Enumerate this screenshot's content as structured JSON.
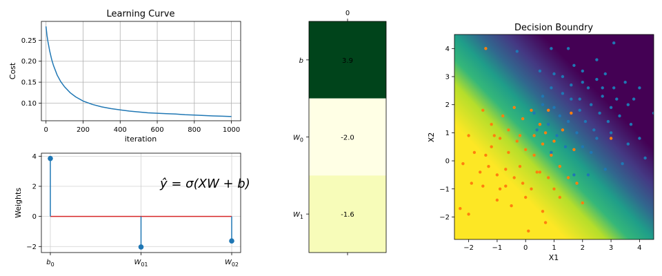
{
  "chart_data": [
    {
      "type": "line",
      "title": "Learning Curve",
      "xlabel": "iteration",
      "ylabel": "Cost",
      "xlim": [
        -25,
        1050
      ],
      "ylim": [
        0.058,
        0.295
      ],
      "xticks": [
        0,
        200,
        400,
        600,
        800,
        1000
      ],
      "yticks": [
        0.1,
        0.15,
        0.2,
        0.25
      ],
      "xtick_labels": [
        "0",
        "200",
        "400",
        "600",
        "800",
        "1000"
      ],
      "ytick_labels": [
        "0.10",
        "0.15",
        "0.20",
        "0.25"
      ],
      "grid": true,
      "color": "#1f77b4",
      "series": [
        {
          "x": [
            0,
            5,
            10,
            20,
            30,
            40,
            60,
            80,
            100,
            130,
            160,
            200,
            250,
            300,
            350,
            400,
            450,
            500,
            550,
            600,
            650,
            700,
            750,
            800,
            850,
            900,
            950,
            1000
          ],
          "values": [
            0.283,
            0.262,
            0.248,
            0.224,
            0.205,
            0.19,
            0.167,
            0.151,
            0.139,
            0.125,
            0.115,
            0.105,
            0.097,
            0.091,
            0.087,
            0.084,
            0.081,
            0.079,
            0.077,
            0.076,
            0.075,
            0.074,
            0.0725,
            0.0715,
            0.0705,
            0.0695,
            0.0688,
            0.068
          ]
        }
      ]
    },
    {
      "type": "stem",
      "xlabel": "",
      "ylabel": "Weights",
      "categories": [
        "b_0",
        "W_01",
        "W_02"
      ],
      "values": [
        3.85,
        -2.03,
        -1.63
      ],
      "ylim": [
        -2.4,
        4.2
      ],
      "yticks": [
        -2,
        0,
        2,
        4
      ],
      "ytick_labels": [
        "−2",
        "0",
        "2",
        "4"
      ],
      "grid": true,
      "stem_color": "#1f77b4",
      "baseline_color": "#d62728",
      "annotation": "ŷ = σ(XW + b)",
      "annotation_color": "#808080"
    },
    {
      "type": "heatmap",
      "xtick_labels": [
        "0"
      ],
      "ytick_labels": [
        "b",
        "W_0",
        "W_1"
      ],
      "values": [
        3.9,
        -2.0,
        -1.6
      ],
      "value_labels": [
        "3.9",
        "-2.0",
        "-1.6"
      ],
      "colors": [
        "#00441b",
        "#ffffe5",
        "#f7fcb9"
      ],
      "colormap": "YlGn"
    },
    {
      "type": "scatter",
      "title": "Decision Boundry",
      "xlabel": "X1",
      "ylabel": "X2",
      "xlim": [
        -2.5,
        4.5
      ],
      "ylim": [
        -2.8,
        4.5
      ],
      "xticks": [
        -2,
        -1,
        0,
        1,
        2,
        3,
        4
      ],
      "yticks": [
        -2,
        -1,
        0,
        1,
        2,
        3,
        4
      ],
      "xtick_labels": [
        "−2",
        "−1",
        "0",
        "1",
        "2",
        "3",
        "4"
      ],
      "ytick_labels": [
        "−2",
        "−1",
        "0",
        "1",
        "2",
        "3",
        "4"
      ],
      "background": "viridis probability surface, yellow lower-left to purple upper-right",
      "grid": false,
      "series": [
        {
          "color": "#1f77b4",
          "points": [
            [
              0.5,
              3.2
            ],
            [
              1.0,
              3.1
            ],
            [
              1.3,
              3.0
            ],
            [
              1.6,
              2.7
            ],
            [
              2.0,
              3.2
            ],
            [
              2.2,
              2.6
            ],
            [
              2.5,
              2.9
            ],
            [
              2.8,
              3.1
            ],
            [
              3.1,
              2.6
            ],
            [
              3.5,
              2.8
            ],
            [
              3.8,
              2.2
            ],
            [
              4.0,
              2.6
            ],
            [
              2.5,
              3.6
            ],
            [
              3.1,
              4.2
            ],
            [
              1.5,
              4.0
            ],
            [
              0.9,
              4.0
            ],
            [
              1.9,
              2.2
            ],
            [
              2.3,
              2.0
            ],
            [
              2.7,
              2.3
            ],
            [
              3.0,
              1.9
            ],
            [
              3.3,
              1.6
            ],
            [
              3.7,
              1.3
            ],
            [
              4.0,
              0.8
            ],
            [
              4.2,
              0.1
            ],
            [
              3.4,
              -0.1
            ],
            [
              2.8,
              -0.3
            ],
            [
              2.3,
              0.3
            ],
            [
              2.0,
              0.5
            ],
            [
              1.8,
              1.0
            ],
            [
              1.5,
              1.4
            ],
            [
              1.2,
              1.6
            ],
            [
              1.0,
              1.9
            ],
            [
              0.6,
              2.0
            ],
            [
              0.3,
              1.7
            ],
            [
              0.8,
              1.3
            ],
            [
              1.1,
              0.9
            ],
            [
              1.4,
              0.5
            ],
            [
              1.7,
              -0.5
            ],
            [
              2.1,
              1.4
            ],
            [
              2.4,
              1.1
            ],
            [
              2.6,
              1.7
            ],
            [
              2.9,
              1.4
            ],
            [
              3.2,
              2.2
            ],
            [
              3.6,
              2.0
            ],
            [
              1.6,
              2.2
            ],
            [
              1.3,
              2.4
            ],
            [
              0.9,
              2.6
            ],
            [
              0.6,
              2.3
            ],
            [
              0.4,
              1.1
            ],
            [
              0.9,
              0.3
            ],
            [
              2.2,
              -0.5
            ],
            [
              1.9,
              1.8
            ],
            [
              2.5,
              0.8
            ],
            [
              3.0,
              1.0
            ],
            [
              3.6,
              0.6
            ],
            [
              4.5,
              1.7
            ],
            [
              -0.3,
              3.9
            ],
            [
              2.0,
              2.8
            ],
            [
              2.7,
              2.6
            ],
            [
              1.7,
              3.4
            ]
          ]
        },
        {
          "color": "#ff7f0e",
          "points": [
            [
              -2.0,
              -1.9
            ],
            [
              -2.3,
              -1.7
            ],
            [
              -1.5,
              -0.9
            ],
            [
              -1.9,
              -0.8
            ],
            [
              -1.3,
              -0.2
            ],
            [
              -1.0,
              -0.5
            ],
            [
              -0.7,
              -0.3
            ],
            [
              -0.4,
              -0.6
            ],
            [
              -0.1,
              -0.8
            ],
            [
              0.2,
              -1.0
            ],
            [
              0.5,
              -0.4
            ],
            [
              0.8,
              -0.6
            ],
            [
              -1.2,
              0.5
            ],
            [
              -0.9,
              0.8
            ],
            [
              -0.6,
              1.1
            ],
            [
              -0.3,
              0.7
            ],
            [
              0.0,
              0.4
            ],
            [
              0.3,
              0.2
            ],
            [
              0.6,
              0.6
            ],
            [
              0.9,
              0.2
            ],
            [
              1.2,
              -0.2
            ],
            [
              1.5,
              -0.6
            ],
            [
              1.8,
              -0.8
            ],
            [
              2.0,
              -1.5
            ],
            [
              0.7,
              -2.2
            ],
            [
              0.1,
              -2.5
            ],
            [
              -0.5,
              -1.6
            ],
            [
              -1.0,
              -1.4
            ],
            [
              -1.6,
              -0.4
            ],
            [
              -1.8,
              0.3
            ],
            [
              -1.5,
              1.8
            ],
            [
              -1.2,
              1.3
            ],
            [
              -0.8,
              1.6
            ],
            [
              -0.4,
              1.9
            ],
            [
              -0.1,
              1.5
            ],
            [
              0.2,
              1.8
            ],
            [
              0.5,
              1.3
            ],
            [
              0.7,
              1.0
            ],
            [
              1.0,
              0.7
            ],
            [
              1.3,
              1.1
            ],
            [
              1.6,
              1.7
            ],
            [
              1.7,
              0.4
            ],
            [
              -0.2,
              -0.2
            ],
            [
              0.4,
              -0.4
            ],
            [
              1.0,
              -1.0
            ],
            [
              -0.9,
              -1.0
            ],
            [
              -1.4,
              0.2
            ],
            [
              -0.6,
              0.3
            ],
            [
              0.0,
              -1.3
            ],
            [
              0.6,
              -1.8
            ],
            [
              1.2,
              -1.3
            ],
            [
              -0.2,
              0.9
            ],
            [
              3.0,
              0.8
            ],
            [
              -2.2,
              -0.1
            ],
            [
              -0.7,
              -0.9
            ],
            [
              0.3,
              0.9
            ],
            [
              0.8,
              1.8
            ],
            [
              -1.1,
              0.9
            ],
            [
              -2.0,
              0.9
            ],
            [
              -1.4,
              4.0
            ]
          ]
        }
      ]
    }
  ]
}
